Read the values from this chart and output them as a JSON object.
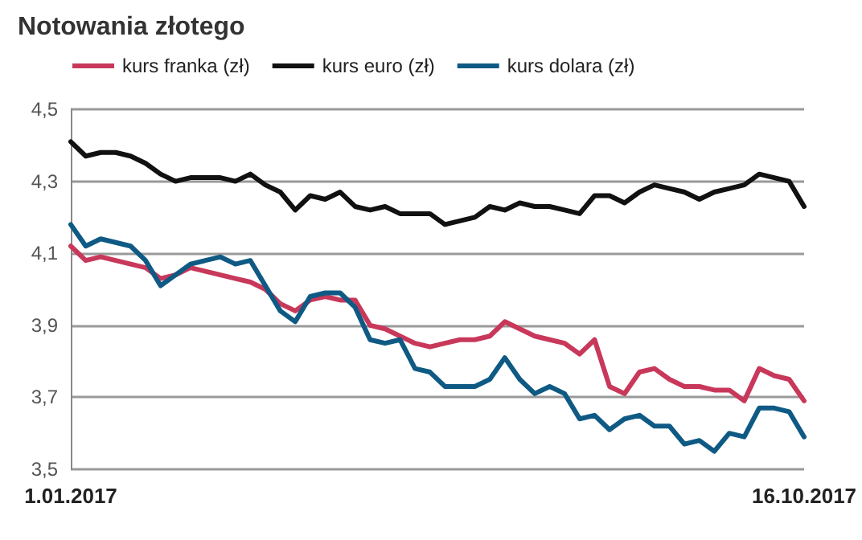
{
  "chart_data": {
    "type": "line",
    "title": "Notowania złotego",
    "categories": [
      "1.01.2017",
      null,
      null,
      null,
      null,
      null,
      null,
      null,
      null,
      null,
      null,
      null,
      null,
      null,
      null,
      null,
      null,
      null,
      null,
      null,
      null,
      null,
      null,
      null,
      null,
      null,
      null,
      null,
      null,
      null,
      null,
      null,
      null,
      null,
      null,
      null,
      null,
      null,
      null,
      null,
      null,
      null,
      null,
      null,
      null,
      null,
      null,
      null,
      null,
      "16.10.2017"
    ],
    "series": [
      {
        "name": "kurs franka (zł)",
        "color": "#c8385a",
        "values": [
          4.12,
          4.08,
          4.09,
          4.08,
          4.07,
          4.06,
          4.03,
          4.04,
          4.06,
          4.05,
          4.04,
          4.03,
          4.02,
          4.0,
          3.96,
          3.94,
          3.97,
          3.98,
          3.97,
          3.97,
          3.9,
          3.89,
          3.87,
          3.85,
          3.84,
          3.85,
          3.86,
          3.86,
          3.87,
          3.91,
          3.89,
          3.87,
          3.86,
          3.85,
          3.82,
          3.86,
          3.73,
          3.71,
          3.77,
          3.78,
          3.75,
          3.73,
          3.73,
          3.72,
          3.72,
          3.69,
          3.78,
          3.76,
          3.75,
          3.69
        ]
      },
      {
        "name": "kurs euro (zł)",
        "color": "#111111",
        "values": [
          4.41,
          4.37,
          4.38,
          4.38,
          4.37,
          4.35,
          4.32,
          4.3,
          4.31,
          4.31,
          4.31,
          4.3,
          4.32,
          4.29,
          4.27,
          4.22,
          4.26,
          4.25,
          4.27,
          4.23,
          4.22,
          4.23,
          4.21,
          4.21,
          4.21,
          4.18,
          4.19,
          4.2,
          4.23,
          4.22,
          4.24,
          4.23,
          4.23,
          4.22,
          4.21,
          4.26,
          4.26,
          4.24,
          4.27,
          4.29,
          4.28,
          4.27,
          4.25,
          4.27,
          4.28,
          4.29,
          4.32,
          4.31,
          4.3,
          4.23
        ]
      },
      {
        "name": "kurs dolara (zł)",
        "color": "#0f5a84",
        "values": [
          4.18,
          4.12,
          4.14,
          4.13,
          4.12,
          4.08,
          4.01,
          4.04,
          4.07,
          4.08,
          4.09,
          4.07,
          4.08,
          4.01,
          3.94,
          3.91,
          3.98,
          3.99,
          3.99,
          3.95,
          3.86,
          3.85,
          3.86,
          3.78,
          3.77,
          3.73,
          3.73,
          3.73,
          3.75,
          3.81,
          3.75,
          3.71,
          3.73,
          3.71,
          3.64,
          3.65,
          3.61,
          3.64,
          3.65,
          3.62,
          3.62,
          3.57,
          3.58,
          3.55,
          3.6,
          3.59,
          3.67,
          3.67,
          3.66,
          3.59
        ]
      }
    ],
    "ylim": [
      3.5,
      4.5
    ],
    "yticks": [
      {
        "value": 3.5,
        "label": "3,5"
      },
      {
        "value": 3.7,
        "label": "3,7"
      },
      {
        "value": 3.9,
        "label": "3,9"
      },
      {
        "value": 4.1,
        "label": "4,1"
      },
      {
        "value": 4.3,
        "label": "4,3"
      },
      {
        "value": 4.5,
        "label": "4,5"
      }
    ],
    "grid": "y",
    "legend": "top left",
    "marker": "none",
    "line_style": "solid"
  }
}
